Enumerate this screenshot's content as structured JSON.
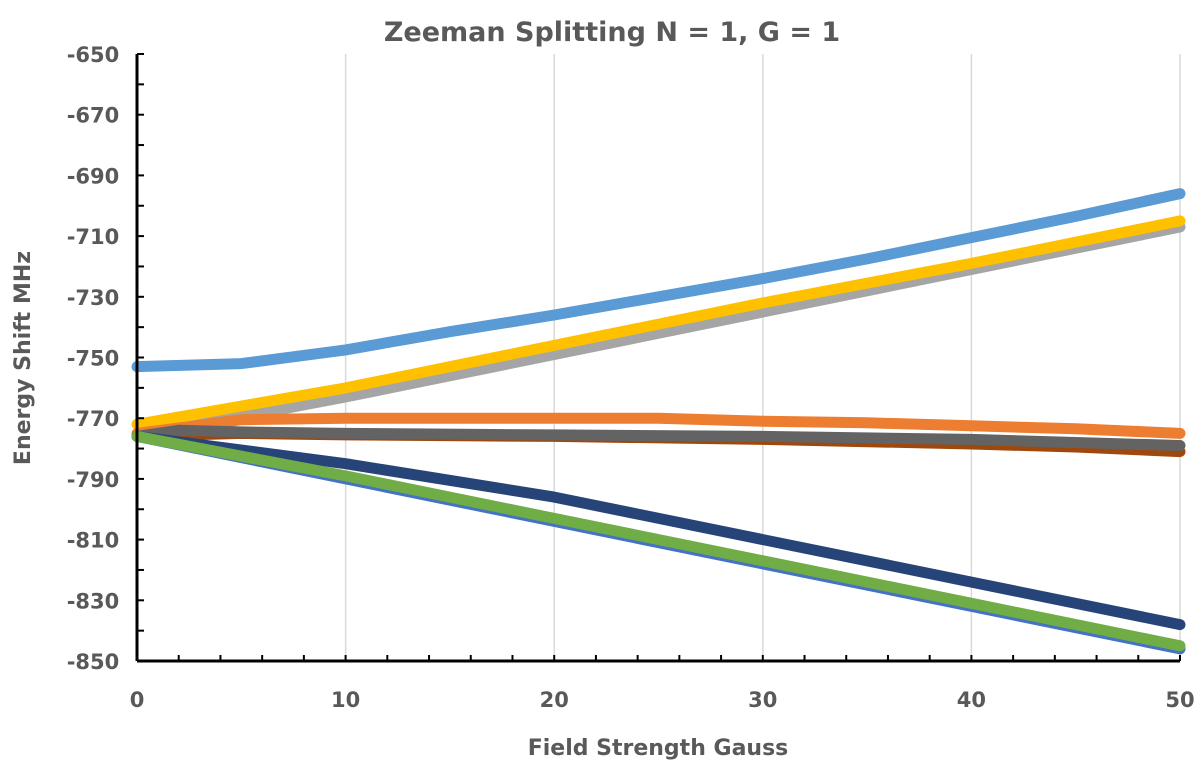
{
  "chart_data": {
    "type": "scatter",
    "title": "Zeeman Splitting N = 1, G = 1",
    "xlabel": "Field Strength Gauss",
    "ylabel": "Energy Shift MHz",
    "xlim": [
      0,
      50
    ],
    "ylim": [
      -850,
      -650
    ],
    "x_ticks": [
      0,
      10,
      20,
      30,
      40,
      50
    ],
    "y_ticks": [
      -650,
      -670,
      -690,
      -710,
      -730,
      -750,
      -770,
      -790,
      -810,
      -830,
      -850
    ],
    "grid": "vertical",
    "legend": "none",
    "series": [
      {
        "color": "#5b9bd5",
        "x": [
          0,
          5,
          10,
          15,
          20,
          25,
          30,
          35,
          40,
          45,
          50
        ],
        "y": [
          -753,
          -752,
          -747.5,
          -741.5,
          -736,
          -730,
          -724,
          -717.5,
          -710.5,
          -703.5,
          -696
        ]
      },
      {
        "color": "#a5a5a5",
        "x": [
          0,
          10,
          20,
          30,
          40,
          50
        ],
        "y": [
          -776,
          -763,
          -749,
          -735,
          -721,
          -707
        ]
      },
      {
        "color": "#ffc000",
        "x": [
          0,
          10,
          20,
          30,
          40,
          50
        ],
        "y": [
          -772,
          -760,
          -746,
          -732,
          -719,
          -705
        ]
      },
      {
        "color": "#ed7d31",
        "x": [
          0,
          5,
          10,
          15,
          20,
          25,
          30,
          35,
          40,
          45,
          50
        ],
        "y": [
          -775,
          -770.5,
          -770,
          -770,
          -770,
          -770,
          -771,
          -771.5,
          -772.5,
          -773.5,
          -775
        ]
      },
      {
        "color": "#9e480e",
        "x": [
          0,
          5,
          10,
          20,
          30,
          40,
          45,
          50
        ],
        "y": [
          -776,
          -775,
          -775.5,
          -776,
          -777,
          -778.5,
          -779.5,
          -781
        ]
      },
      {
        "color": "#636363",
        "x": [
          0,
          2,
          5,
          10,
          20,
          30,
          40,
          45,
          50
        ],
        "y": [
          -776,
          -774,
          -774.5,
          -775,
          -775.5,
          -776,
          -777,
          -778,
          -779
        ]
      },
      {
        "color": "#264478",
        "x": [
          0,
          10,
          20,
          30,
          40,
          50
        ],
        "y": [
          -776,
          -785,
          -796,
          -810,
          -824,
          -838
        ]
      },
      {
        "color": "#4472c4",
        "x": [
          0,
          10,
          20,
          30,
          40,
          50
        ],
        "y": [
          -776,
          -790,
          -804,
          -818,
          -832,
          -846
        ]
      },
      {
        "color": "#70ad47",
        "x": [
          0,
          10,
          20,
          30,
          40,
          50
        ],
        "y": [
          -776,
          -789,
          -803,
          -817,
          -831,
          -845
        ]
      }
    ]
  }
}
